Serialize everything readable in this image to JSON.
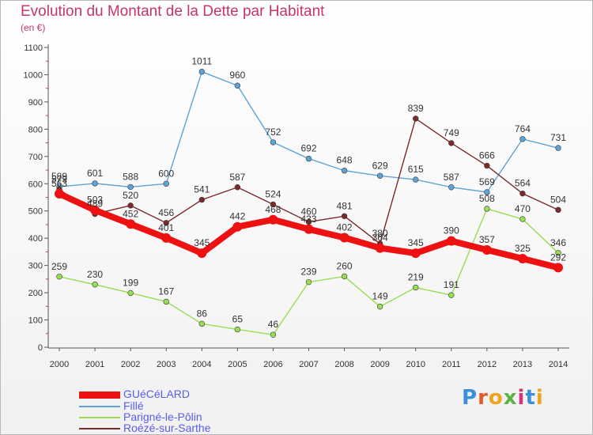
{
  "header": {
    "title": "Evolution du Montant de la Dette par Habitant",
    "unit": "(en €)"
  },
  "logo": {
    "text": "Proxiti",
    "letter_colors": [
      "#3c8fd8",
      "#e05a2a",
      "#f2a21c",
      "#5ab348",
      "#d8337a",
      "#3c8fd8",
      "#f2a21c"
    ]
  },
  "chart_data": {
    "type": "line",
    "title": "Evolution du Montant de la Dette par Habitant",
    "ylabel": "(en €)",
    "xlabel": "",
    "x": [
      "2000",
      "2001",
      "2002",
      "2003",
      "2004",
      "2005",
      "2006",
      "2007",
      "2008",
      "2009",
      "2010",
      "2011",
      "2012",
      "2013",
      "2014"
    ],
    "ylim": [
      0,
      1100
    ],
    "yticks": [
      0,
      100,
      200,
      300,
      400,
      500,
      600,
      700,
      800,
      900,
      1000,
      1100
    ],
    "grid": false,
    "legend_position": "bottom-left",
    "series": [
      {
        "name": "GUéCéLARD",
        "color": "#ee1111",
        "values": [
          563,
          503,
          452,
          401,
          345,
          442,
          468,
          433,
          402,
          364,
          345,
          390,
          357,
          325,
          292
        ]
      },
      {
        "name": "Fillé",
        "color": "#5da3d6",
        "values": [
          589,
          601,
          588,
          600,
          1011,
          960,
          752,
          692,
          648,
          629,
          615,
          587,
          569,
          764,
          731
        ]
      },
      {
        "name": "Parigné-le-Pôlin",
        "color": "#99dd55",
        "values": [
          259,
          230,
          199,
          167,
          86,
          65,
          46,
          239,
          260,
          149,
          219,
          191,
          508,
          470,
          346
        ]
      },
      {
        "name": "Roézé-sur-Sarthe",
        "color": "#7a2a2a",
        "values": [
          579,
          489,
          520,
          456,
          541,
          587,
          524,
          460,
          481,
          380,
          839,
          749,
          666,
          564,
          504
        ]
      }
    ]
  }
}
